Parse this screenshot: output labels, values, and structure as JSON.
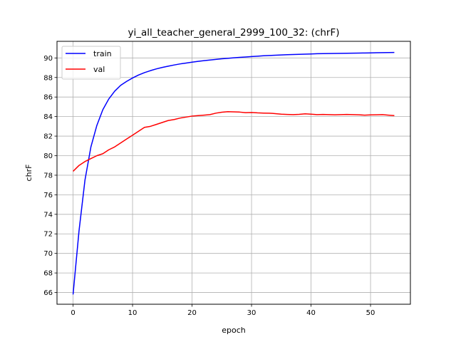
{
  "chart_data": {
    "type": "line",
    "title": "yi_all_teacher_general_2999_100_32: (chrF)",
    "xlabel": "epoch",
    "ylabel": "chrF",
    "xlim": [
      -2.7,
      56.7
    ],
    "ylim": [
      64.8,
      91.7
    ],
    "xticks": [
      0,
      10,
      20,
      30,
      40,
      50
    ],
    "yticks": [
      66,
      68,
      70,
      72,
      74,
      76,
      78,
      80,
      82,
      84,
      86,
      88,
      90
    ],
    "grid": true,
    "legend_position": "top-left",
    "x": [
      0,
      1,
      2,
      3,
      4,
      5,
      6,
      7,
      8,
      9,
      10,
      11,
      12,
      13,
      14,
      15,
      16,
      17,
      18,
      19,
      20,
      21,
      22,
      23,
      24,
      25,
      26,
      27,
      28,
      29,
      30,
      31,
      32,
      33,
      34,
      35,
      36,
      37,
      38,
      39,
      40,
      41,
      42,
      43,
      44,
      45,
      46,
      47,
      48,
      49,
      50,
      51,
      52,
      53,
      54
    ],
    "series": [
      {
        "name": "train",
        "color": "#0000ff",
        "values": [
          65.8,
          72.3,
          77.5,
          80.9,
          83.1,
          84.7,
          85.8,
          86.6,
          87.2,
          87.6,
          87.95,
          88.25,
          88.5,
          88.7,
          88.88,
          89.03,
          89.16,
          89.28,
          89.39,
          89.48,
          89.57,
          89.65,
          89.72,
          89.79,
          89.85,
          89.91,
          89.96,
          90.01,
          90.06,
          90.1,
          90.14,
          90.18,
          90.22,
          90.25,
          90.28,
          90.31,
          90.33,
          90.35,
          90.37,
          90.39,
          90.41,
          90.43,
          90.44,
          90.45,
          90.46,
          90.47,
          90.48,
          90.49,
          90.5,
          90.51,
          90.52,
          90.53,
          90.54,
          90.55,
          90.56
        ]
      },
      {
        "name": "val",
        "color": "#ff0000",
        "values": [
          78.4,
          79.0,
          79.4,
          79.7,
          80.0,
          80.2,
          80.6,
          80.9,
          81.3,
          81.7,
          82.1,
          82.5,
          82.9,
          83.0,
          83.2,
          83.4,
          83.6,
          83.7,
          83.85,
          83.95,
          84.05,
          84.1,
          84.15,
          84.2,
          84.35,
          84.45,
          84.5,
          84.48,
          84.46,
          84.4,
          84.42,
          84.38,
          84.36,
          84.35,
          84.3,
          84.25,
          84.22,
          84.2,
          84.23,
          84.28,
          84.25,
          84.2,
          84.22,
          84.2,
          84.18,
          84.2,
          84.22,
          84.2,
          84.18,
          84.15,
          84.17,
          84.18,
          84.2,
          84.15,
          84.1
        ]
      }
    ]
  }
}
